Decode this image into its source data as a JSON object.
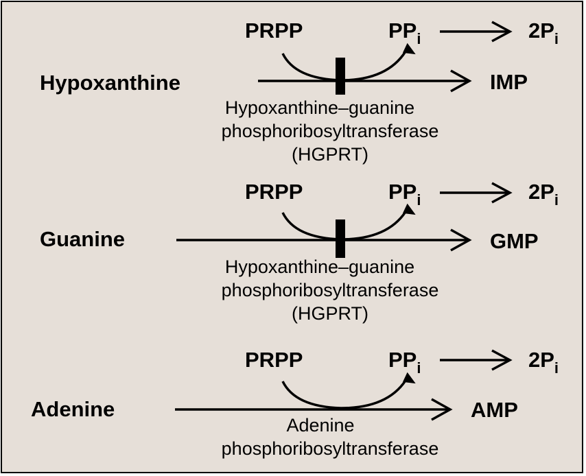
{
  "colors": {
    "background": "#e6dfd8",
    "ink": "#000000"
  },
  "reactions": [
    {
      "substrate": "Hypoxanthine",
      "product": "IMP",
      "cosubstrate": "PRPP",
      "byproduct": "PP",
      "byproduct_subscript": "i",
      "byproduct_fate_coefficient": "2P",
      "byproduct_fate_subscript": "i",
      "enzyme_lines": [
        "Hypoxanthine–guanine",
        "phosphoribosyltransferase",
        "(HGPRT)"
      ],
      "shows_block_marker": true
    },
    {
      "substrate": "Guanine",
      "product": "GMP",
      "cosubstrate": "PRPP",
      "byproduct": "PP",
      "byproduct_subscript": "i",
      "byproduct_fate_coefficient": "2P",
      "byproduct_fate_subscript": "i",
      "enzyme_lines": [
        "Hypoxanthine–guanine",
        "phosphoribosyltransferase",
        "(HGPRT)"
      ],
      "shows_block_marker": true
    },
    {
      "substrate": "Adenine",
      "product": "AMP",
      "cosubstrate": "PRPP",
      "byproduct": "PP",
      "byproduct_subscript": "i",
      "byproduct_fate_coefficient": "2P",
      "byproduct_fate_subscript": "i",
      "enzyme_lines": [
        "Adenine",
        "phosphoribosyltransferase"
      ],
      "shows_block_marker": false
    }
  ]
}
